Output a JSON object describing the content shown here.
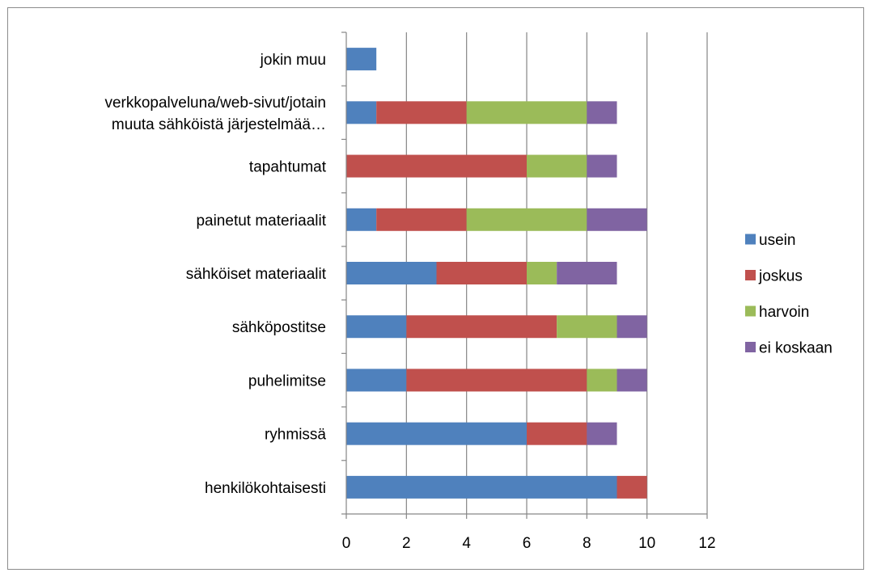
{
  "chart_data": {
    "type": "bar",
    "orientation": "horizontal",
    "stacked": true,
    "title": "",
    "xlabel": "",
    "ylabel": "",
    "xlim": [
      0,
      12
    ],
    "x_ticks": [
      0,
      2,
      4,
      6,
      8,
      10,
      12
    ],
    "grid": true,
    "legend_position": "right",
    "categories": [
      [
        "jokin muu"
      ],
      [
        "verkkopalveluna/web-sivut/jotain",
        "muuta sähköistä järjestelmää…"
      ],
      [
        "tapahtumat"
      ],
      [
        "painetut materiaalit"
      ],
      [
        "sähköiset materiaalit"
      ],
      [
        "sähköpostitse"
      ],
      [
        "puhelimitse"
      ],
      [
        "ryhmissä"
      ],
      [
        "henkilökohtaisesti"
      ]
    ],
    "series": [
      {
        "name": "usein",
        "color": "#4f81bd",
        "values": [
          1,
          1,
          0,
          1,
          3,
          2,
          2,
          6,
          9
        ]
      },
      {
        "name": "joskus",
        "color": "#c0504d",
        "values": [
          0,
          3,
          6,
          3,
          3,
          5,
          6,
          2,
          1
        ]
      },
      {
        "name": "harvoin",
        "color": "#9bbb59",
        "values": [
          0,
          4,
          2,
          4,
          1,
          2,
          1,
          0,
          0
        ]
      },
      {
        "name": "ei koskaan",
        "color": "#8064a2",
        "values": [
          0,
          1,
          1,
          2,
          2,
          1,
          1,
          1,
          0
        ]
      }
    ]
  }
}
